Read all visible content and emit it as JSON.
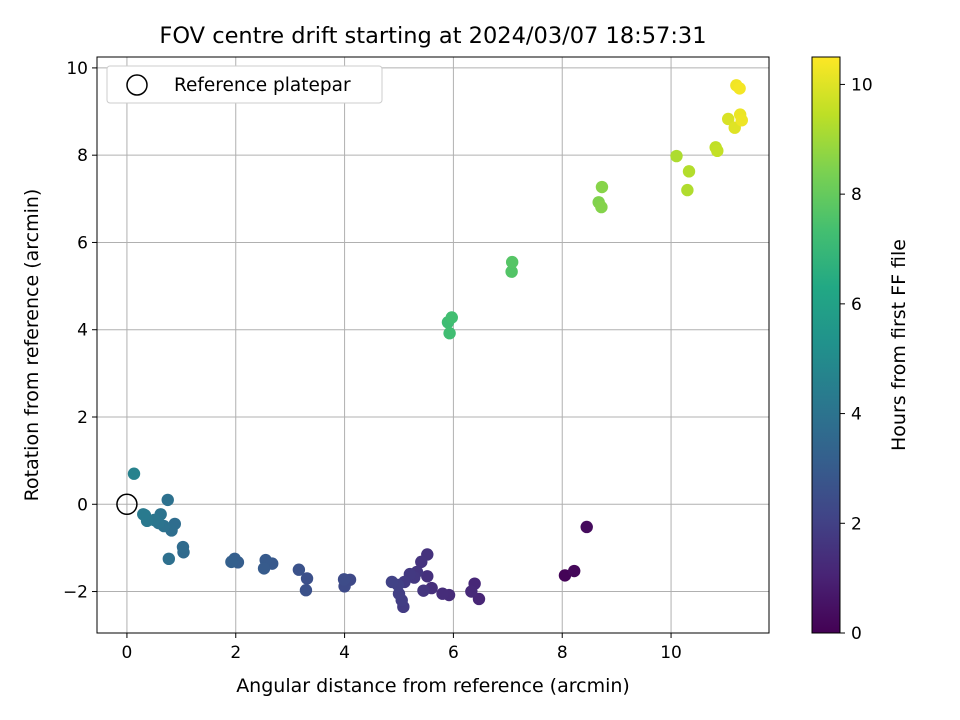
{
  "chart_data": {
    "type": "scatter",
    "title": "FOV centre drift starting at 2024/03/07 18:57:31",
    "xlabel": "Angular distance from reference (arcmin)",
    "ylabel": "Rotation from reference (arcmin)",
    "xlim": [
      -0.55,
      11.8
    ],
    "ylim": [
      -2.95,
      10.25
    ],
    "xticks": [
      0,
      2,
      4,
      6,
      8,
      10
    ],
    "yticks": [
      -2,
      0,
      2,
      4,
      6,
      8,
      10
    ],
    "grid": true,
    "legend": {
      "position": "top-left",
      "entries": [
        "Reference platepar"
      ]
    },
    "reference_point": {
      "x": 0,
      "y": 0
    },
    "colorbar": {
      "label": "Hours from first FF file",
      "colormap": "viridis",
      "range": [
        0,
        10.5
      ],
      "ticks": [
        0,
        2,
        4,
        6,
        8,
        10
      ]
    },
    "points": [
      {
        "x": 8.05,
        "y": -1.63,
        "h": 0.1
      },
      {
        "x": 8.22,
        "y": -1.53,
        "h": 0.2
      },
      {
        "x": 8.45,
        "y": -0.52,
        "h": 0.3
      },
      {
        "x": 6.47,
        "y": -2.17,
        "h": 1.1
      },
      {
        "x": 6.39,
        "y": -1.82,
        "h": 1.15
      },
      {
        "x": 6.33,
        "y": -2.0,
        "h": 1.2
      },
      {
        "x": 5.92,
        "y": -2.08,
        "h": 1.3
      },
      {
        "x": 5.8,
        "y": -2.05,
        "h": 1.35
      },
      {
        "x": 5.6,
        "y": -1.92,
        "h": 1.4
      },
      {
        "x": 5.52,
        "y": -1.65,
        "h": 1.45
      },
      {
        "x": 5.52,
        "y": -1.15,
        "h": 1.5
      },
      {
        "x": 5.41,
        "y": -1.32,
        "h": 1.55
      },
      {
        "x": 5.45,
        "y": -1.98,
        "h": 1.6
      },
      {
        "x": 5.33,
        "y": -1.55,
        "h": 1.65
      },
      {
        "x": 5.28,
        "y": -1.68,
        "h": 1.7
      },
      {
        "x": 5.2,
        "y": -1.6,
        "h": 1.75
      },
      {
        "x": 5.1,
        "y": -1.78,
        "h": 1.8
      },
      {
        "x": 5.08,
        "y": -2.35,
        "h": 1.85
      },
      {
        "x": 5.05,
        "y": -2.2,
        "h": 1.9
      },
      {
        "x": 5.0,
        "y": -2.05,
        "h": 1.95
      },
      {
        "x": 4.98,
        "y": -1.85,
        "h": 2.0
      },
      {
        "x": 4.87,
        "y": -1.78,
        "h": 2.05
      },
      {
        "x": 4.1,
        "y": -1.73,
        "h": 2.3
      },
      {
        "x": 4.0,
        "y": -1.88,
        "h": 2.35
      },
      {
        "x": 3.99,
        "y": -1.72,
        "h": 2.4
      },
      {
        "x": 3.31,
        "y": -1.7,
        "h": 2.55
      },
      {
        "x": 3.29,
        "y": -1.97,
        "h": 2.6
      },
      {
        "x": 3.16,
        "y": -1.5,
        "h": 2.65
      },
      {
        "x": 2.67,
        "y": -1.36,
        "h": 2.9
      },
      {
        "x": 2.55,
        "y": -1.28,
        "h": 2.95
      },
      {
        "x": 2.52,
        "y": -1.47,
        "h": 3.0
      },
      {
        "x": 2.04,
        "y": -1.33,
        "h": 3.1
      },
      {
        "x": 1.98,
        "y": -1.25,
        "h": 3.15
      },
      {
        "x": 1.92,
        "y": -1.32,
        "h": 3.2
      },
      {
        "x": 1.04,
        "y": -1.1,
        "h": 3.6
      },
      {
        "x": 1.03,
        "y": -0.98,
        "h": 3.65
      },
      {
        "x": 0.88,
        "y": -0.45,
        "h": 3.75
      },
      {
        "x": 0.82,
        "y": -0.6,
        "h": 3.8
      },
      {
        "x": 0.77,
        "y": -1.25,
        "h": 3.85
      },
      {
        "x": 0.75,
        "y": 0.1,
        "h": 3.9
      },
      {
        "x": 0.68,
        "y": -0.5,
        "h": 3.95
      },
      {
        "x": 0.62,
        "y": -0.23,
        "h": 4.0
      },
      {
        "x": 0.58,
        "y": -0.43,
        "h": 4.05
      },
      {
        "x": 0.5,
        "y": -0.36,
        "h": 4.1
      },
      {
        "x": 0.37,
        "y": -0.38,
        "h": 4.2
      },
      {
        "x": 0.33,
        "y": -0.25,
        "h": 4.25
      },
      {
        "x": 0.3,
        "y": -0.23,
        "h": 4.3
      },
      {
        "x": 0.13,
        "y": 0.7,
        "h": 4.6
      },
      {
        "x": 5.9,
        "y": 4.17,
        "h": 7.2
      },
      {
        "x": 5.93,
        "y": 3.92,
        "h": 7.25
      },
      {
        "x": 5.97,
        "y": 4.28,
        "h": 7.3
      },
      {
        "x": 7.07,
        "y": 5.33,
        "h": 7.65
      },
      {
        "x": 7.08,
        "y": 5.55,
        "h": 7.7
      },
      {
        "x": 8.67,
        "y": 6.92,
        "h": 8.5
      },
      {
        "x": 8.72,
        "y": 6.81,
        "h": 8.55
      },
      {
        "x": 8.73,
        "y": 7.27,
        "h": 8.6
      },
      {
        "x": 10.1,
        "y": 7.98,
        "h": 9.2
      },
      {
        "x": 10.3,
        "y": 7.2,
        "h": 9.25
      },
      {
        "x": 10.33,
        "y": 7.63,
        "h": 9.3
      },
      {
        "x": 10.82,
        "y": 8.18,
        "h": 9.5
      },
      {
        "x": 10.85,
        "y": 8.1,
        "h": 9.55
      },
      {
        "x": 11.05,
        "y": 8.83,
        "h": 9.9
      },
      {
        "x": 11.17,
        "y": 8.63,
        "h": 10.0
      },
      {
        "x": 11.2,
        "y": 9.6,
        "h": 10.3
      },
      {
        "x": 11.26,
        "y": 9.53,
        "h": 10.35
      },
      {
        "x": 11.27,
        "y": 8.93,
        "h": 10.2
      },
      {
        "x": 11.3,
        "y": 8.8,
        "h": 10.25
      }
    ]
  }
}
